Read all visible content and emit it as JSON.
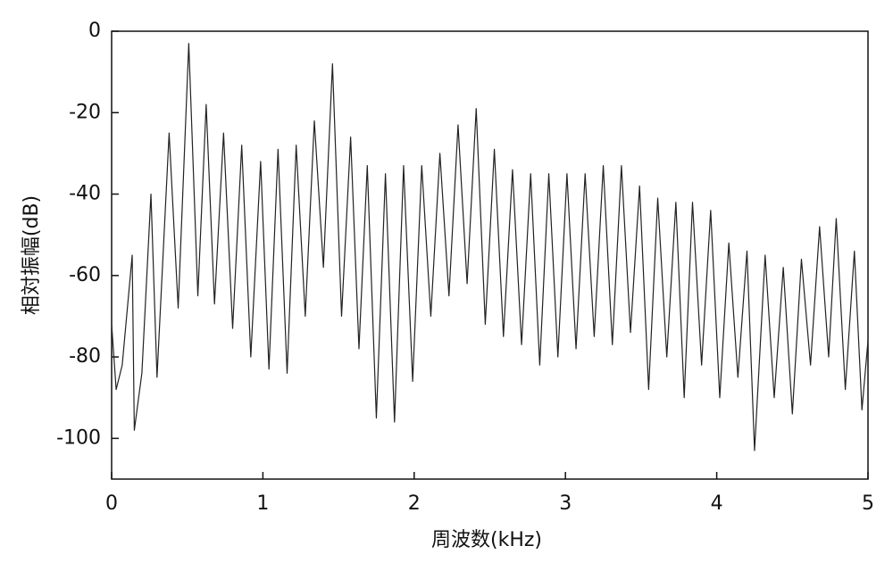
{
  "chart_data": {
    "type": "line",
    "xlabel": "周波数(kHz)",
    "ylabel": "相対振幅(dB)",
    "x": [
      0,
      0.03,
      0.07,
      0.136,
      0.15,
      0.2,
      0.26,
      0.3,
      0.38,
      0.44,
      0.51,
      0.57,
      0.625,
      0.68,
      0.74,
      0.8,
      0.86,
      0.92,
      0.985,
      1.04,
      1.1,
      1.16,
      1.22,
      1.28,
      1.34,
      1.4,
      1.46,
      1.52,
      1.58,
      1.635,
      1.69,
      1.75,
      1.81,
      1.87,
      1.93,
      1.99,
      2.05,
      2.11,
      2.17,
      2.23,
      2.29,
      2.35,
      2.41,
      2.47,
      2.53,
      2.59,
      2.65,
      2.71,
      2.77,
      2.83,
      2.89,
      2.95,
      3.01,
      3.07,
      3.13,
      3.19,
      3.25,
      3.31,
      3.37,
      3.43,
      3.49,
      3.55,
      3.61,
      3.67,
      3.73,
      3.785,
      3.84,
      3.9,
      3.96,
      4.02,
      4.08,
      4.14,
      4.2,
      4.25,
      4.32,
      4.38,
      4.44,
      4.5,
      4.56,
      4.62,
      4.68,
      4.74,
      4.79,
      4.85,
      4.91,
      4.96,
      5.0
    ],
    "values": [
      -72,
      -88,
      -82,
      -55,
      -98,
      -84,
      -40,
      -85,
      -25,
      -68,
      -3,
      -65,
      -18,
      -67,
      -25,
      -73,
      -28,
      -80,
      -32,
      -83,
      -29,
      -84,
      -28,
      -70,
      -22,
      -58,
      -8,
      -70,
      -26,
      -78,
      -33,
      -95,
      -35,
      -96,
      -33,
      -86,
      -33,
      -70,
      -30,
      -65,
      -23,
      -62,
      -19,
      -72,
      -29,
      -75,
      -34,
      -77,
      -35,
      -82,
      -35,
      -80,
      -35,
      -78,
      -35,
      -75,
      -33,
      -77,
      -33,
      -74,
      -38,
      -88,
      -41,
      -80,
      -42,
      -90,
      -42,
      -82,
      -44,
      -90,
      -52,
      -85,
      -54,
      -103,
      -55,
      -90,
      -58,
      -94,
      -56,
      -82,
      -48,
      -80,
      -46,
      -88,
      -54,
      -93,
      -76
    ],
    "color": "#222222",
    "xlim": [
      0,
      5
    ],
    "xticks": [
      0,
      1,
      2,
      3,
      4,
      5
    ],
    "ylim": [
      -110,
      0
    ],
    "yticks": [
      0,
      -20,
      -40,
      -60,
      -80,
      -100
    ]
  }
}
